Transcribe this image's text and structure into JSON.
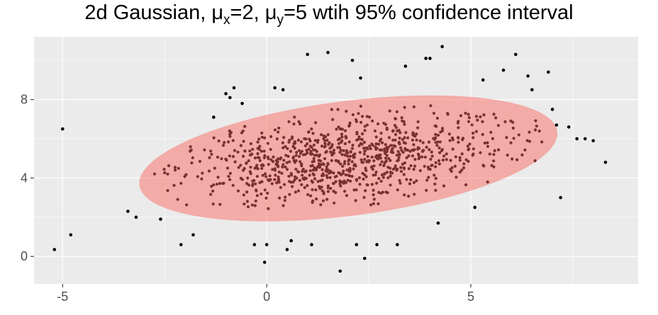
{
  "chart_data": {
    "type": "scatter",
    "title": {
      "prefix": "2d Gaussian, ",
      "mu_x_symbol": "μ",
      "mu_x_sub": "x",
      "mu_x_value": "=2, ",
      "mu_y_symbol": "μ",
      "mu_y_sub": "y",
      "mu_y_value": "=5 wtih 95% confidence interval"
    },
    "xlabel": "",
    "ylabel": "",
    "xlim": [
      -5.7,
      9.1
    ],
    "ylim": [
      -1.4,
      11.2
    ],
    "x_ticks": [
      -5,
      0,
      5
    ],
    "x_tick_labels": [
      "-5",
      "0",
      "5"
    ],
    "y_ticks": [
      0,
      4,
      8
    ],
    "y_tick_labels": [
      "0",
      "4",
      "8"
    ],
    "grid": true,
    "background": "#ebebeb",
    "ellipse": {
      "center_x": 2.0,
      "center_y": 5.0,
      "semi_major": 5.3,
      "semi_minor": 2.65,
      "angle_deg": 15,
      "fill": "#f8766d",
      "opacity": 0.55,
      "label": "95% confidence interval"
    },
    "points_color": "#000000",
    "outlier_points": [
      [
        -5.0,
        6.5
      ],
      [
        -5.2,
        0.35
      ],
      [
        -4.8,
        1.1
      ],
      [
        -3.4,
        2.3
      ],
      [
        -3.2,
        2.0
      ],
      [
        -2.6,
        1.9
      ],
      [
        -2.1,
        0.6
      ],
      [
        -1.8,
        1.1
      ],
      [
        -1.3,
        7.1
      ],
      [
        -1.0,
        8.3
      ],
      [
        -0.8,
        8.6
      ],
      [
        0.2,
        8.6
      ],
      [
        0.4,
        8.5
      ],
      [
        1.0,
        10.3
      ],
      [
        1.5,
        10.4
      ],
      [
        2.1,
        10.0
      ],
      [
        2.3,
        9.1
      ],
      [
        3.4,
        9.7
      ],
      [
        3.9,
        10.1
      ],
      [
        4.3,
        10.7
      ],
      [
        5.8,
        9.5
      ],
      [
        6.1,
        10.3
      ],
      [
        6.4,
        9.2
      ],
      [
        6.5,
        8.5
      ],
      [
        6.9,
        9.4
      ],
      [
        7.0,
        7.5
      ],
      [
        7.1,
        6.7
      ],
      [
        7.4,
        6.6
      ],
      [
        7.6,
        6.0
      ],
      [
        7.8,
        6.0
      ],
      [
        8.0,
        5.9
      ],
      [
        8.3,
        4.8
      ],
      [
        7.2,
        3.0
      ],
      [
        5.1,
        2.5
      ],
      [
        4.2,
        1.7
      ],
      [
        3.2,
        0.6
      ],
      [
        2.7,
        0.6
      ],
      [
        2.4,
        -0.1
      ],
      [
        2.2,
        0.6
      ],
      [
        1.8,
        -0.75
      ],
      [
        1.1,
        0.6
      ],
      [
        0.5,
        0.35
      ],
      [
        0.0,
        0.6
      ],
      [
        -0.3,
        0.6
      ],
      [
        -0.05,
        -0.3
      ],
      [
        0.6,
        0.8
      ],
      [
        -0.6,
        7.8
      ],
      [
        -0.9,
        8.1
      ],
      [
        4.0,
        10.1
      ],
      [
        5.3,
        9.0
      ]
    ],
    "inner_point_count": 900,
    "inner_seed": 7
  }
}
